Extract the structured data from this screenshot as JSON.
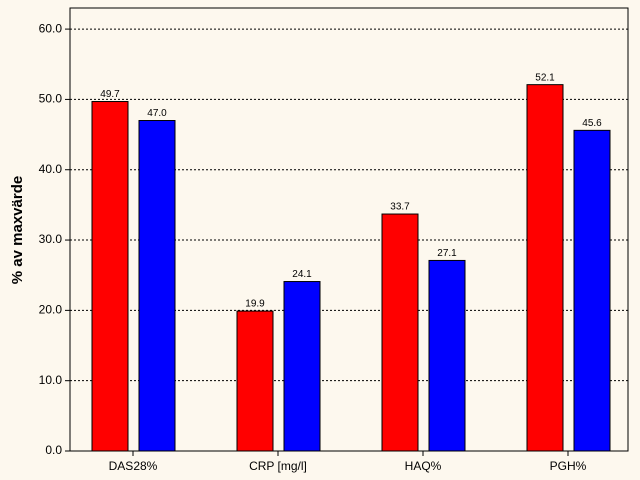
{
  "chart_data": {
    "type": "bar",
    "y_label": "% av maxvärde",
    "categories": [
      "DAS28%",
      "CRP [mg/l]",
      "HAQ%",
      "PGH%"
    ],
    "series": [
      {
        "color": "#ff0000",
        "values": [
          49.7,
          19.9,
          33.7,
          52.1
        ],
        "value_labels": [
          "49.7",
          "19.9",
          "33.7",
          "52.1"
        ]
      },
      {
        "color": "#0000ff",
        "values": [
          47.0,
          24.1,
          27.1,
          45.6
        ],
        "value_labels": [
          "47.0",
          "24.1",
          "27.1",
          "45.6"
        ]
      }
    ],
    "ylim": [
      0,
      63
    ],
    "yticks": [
      {
        "value": 0,
        "label": "0.0"
      },
      {
        "value": 10,
        "label": "10.0"
      },
      {
        "value": 20,
        "label": "20.0"
      },
      {
        "value": 30,
        "label": "30.0"
      },
      {
        "value": 40,
        "label": "40.0"
      },
      {
        "value": 50,
        "label": "50.0"
      },
      {
        "value": 60,
        "label": "60.0"
      }
    ],
    "grid": true
  }
}
